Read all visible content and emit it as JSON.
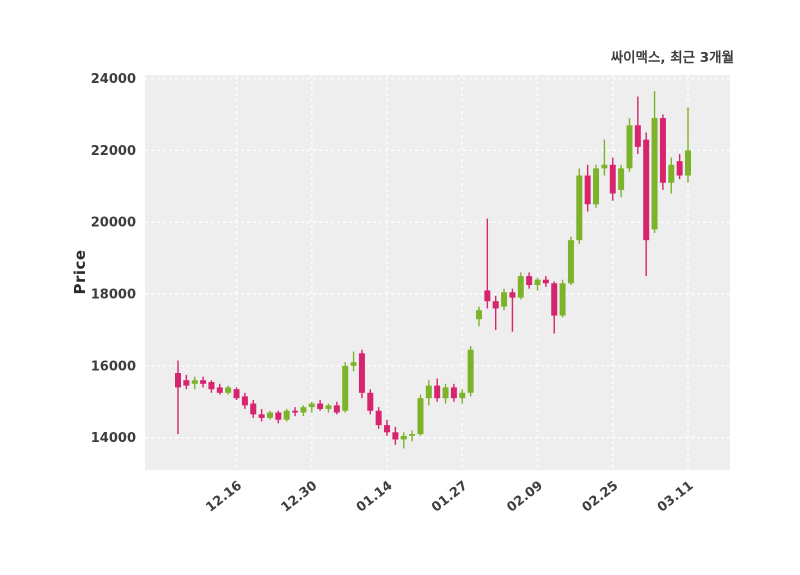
{
  "chart_data": {
    "type": "candlestick",
    "title": "싸이맥스, 최근 3개월",
    "ylabel": "Price",
    "ylim": [
      13100,
      24100
    ],
    "y_ticks": [
      14000,
      16000,
      18000,
      20000,
      22000,
      24000
    ],
    "x_ticks": [
      {
        "index": 7,
        "label": "12.16"
      },
      {
        "index": 16,
        "label": "12.30"
      },
      {
        "index": 25,
        "label": "01.14"
      },
      {
        "index": 34,
        "label": "01.27"
      },
      {
        "index": 43,
        "label": "02.09"
      },
      {
        "index": 52,
        "label": "02.25"
      },
      {
        "index": 61,
        "label": "03.11"
      }
    ],
    "grid": true,
    "legend": "none",
    "plot_bg": "#eeeeee",
    "grid_color": "#ffffff",
    "up_color": "#7db32b",
    "down_color": "#d6246e",
    "candles_format": [
      "open",
      "high",
      "low",
      "close"
    ],
    "candles": [
      [
        15800,
        16150,
        14100,
        15400
      ],
      [
        15600,
        15750,
        15350,
        15450
      ],
      [
        15500,
        15700,
        15350,
        15600
      ],
      [
        15600,
        15700,
        15400,
        15500
      ],
      [
        15550,
        15600,
        15250,
        15350
      ],
      [
        15400,
        15500,
        15200,
        15250
      ],
      [
        15250,
        15450,
        15200,
        15400
      ],
      [
        15350,
        15400,
        15050,
        15100
      ],
      [
        15150,
        15250,
        14800,
        14900
      ],
      [
        14950,
        15050,
        14550,
        14650
      ],
      [
        14650,
        14800,
        14450,
        14550
      ],
      [
        14550,
        14750,
        14500,
        14700
      ],
      [
        14700,
        14750,
        14400,
        14500
      ],
      [
        14500,
        14800,
        14450,
        14750
      ],
      [
        14750,
        14850,
        14600,
        14700
      ],
      [
        14700,
        14900,
        14600,
        14850
      ],
      [
        14850,
        15000,
        14700,
        14950
      ],
      [
        14950,
        15050,
        14750,
        14800
      ],
      [
        14800,
        14950,
        14700,
        14900
      ],
      [
        14900,
        15000,
        14650,
        14700
      ],
      [
        14750,
        16100,
        14700,
        16000
      ],
      [
        16000,
        16400,
        15850,
        16100
      ],
      [
        16350,
        16450,
        15100,
        15250
      ],
      [
        15250,
        15350,
        14650,
        14750
      ],
      [
        14750,
        14850,
        14250,
        14350
      ],
      [
        14350,
        14500,
        14050,
        14150
      ],
      [
        14150,
        14300,
        13800,
        13950
      ],
      [
        13950,
        14150,
        13700,
        14050
      ],
      [
        14050,
        14200,
        13900,
        14100
      ],
      [
        14100,
        15200,
        14050,
        15100
      ],
      [
        15100,
        15600,
        14900,
        15450
      ],
      [
        15450,
        15650,
        15000,
        15100
      ],
      [
        15100,
        15500,
        14950,
        15400
      ],
      [
        15400,
        15500,
        15000,
        15100
      ],
      [
        15100,
        15350,
        14950,
        15250
      ],
      [
        15250,
        16550,
        15150,
        16450
      ],
      [
        17300,
        17650,
        17100,
        17550
      ],
      [
        18100,
        20100,
        17600,
        17800
      ],
      [
        17800,
        17950,
        17000,
        17600
      ],
      [
        17650,
        18150,
        17550,
        18050
      ],
      [
        18050,
        18150,
        16950,
        17900
      ],
      [
        17900,
        18600,
        17850,
        18500
      ],
      [
        18500,
        18600,
        18150,
        18250
      ],
      [
        18250,
        18450,
        18100,
        18400
      ],
      [
        18400,
        18500,
        18200,
        18300
      ],
      [
        18300,
        18350,
        16900,
        17400
      ],
      [
        17400,
        18400,
        17350,
        18300
      ],
      [
        18300,
        19600,
        18250,
        19500
      ],
      [
        19500,
        21500,
        19400,
        21300
      ],
      [
        21300,
        21600,
        20300,
        20500
      ],
      [
        20500,
        21600,
        20400,
        21500
      ],
      [
        21500,
        22300,
        21300,
        21600
      ],
      [
        21600,
        21800,
        20600,
        20800
      ],
      [
        20900,
        21600,
        20700,
        21500
      ],
      [
        21500,
        22900,
        21400,
        22700
      ],
      [
        22700,
        23500,
        21900,
        22100
      ],
      [
        22300,
        22500,
        18500,
        19500
      ],
      [
        19800,
        23650,
        19700,
        22900
      ],
      [
        22900,
        23000,
        20900,
        21100
      ],
      [
        21100,
        21800,
        20800,
        21600
      ],
      [
        21700,
        21900,
        21200,
        21300
      ],
      [
        21300,
        23200,
        21100,
        22000
      ]
    ]
  }
}
